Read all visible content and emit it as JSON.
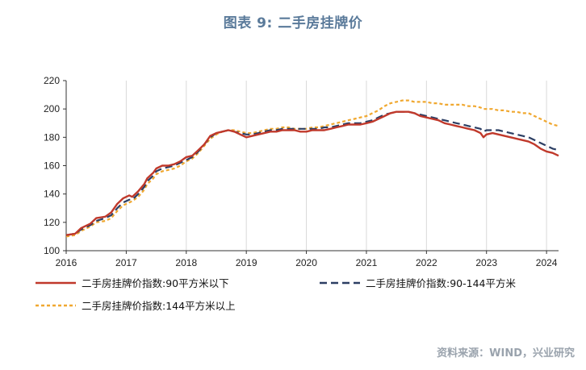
{
  "title": "图表 9:  二手房挂牌价",
  "source": "资料来源：WIND，兴业研究",
  "chart_data": {
    "type": "line",
    "xlim": [
      2016.0,
      2024.2
    ],
    "ylim": [
      100,
      220
    ],
    "x_ticks": [
      2016,
      2017,
      2018,
      2019,
      2020,
      2021,
      2022,
      2023,
      2024
    ],
    "y_ticks": [
      100,
      120,
      140,
      160,
      180,
      200,
      220
    ],
    "grid": "vertical",
    "legend_position": "bottom",
    "series": [
      {
        "name": "二手房挂牌价指数:90平方米以下",
        "color": "#c0392b",
        "style": "solid",
        "points": [
          [
            2016.0,
            111
          ],
          [
            2016.15,
            112
          ],
          [
            2016.25,
            116
          ],
          [
            2016.4,
            119
          ],
          [
            2016.5,
            123
          ],
          [
            2016.65,
            124
          ],
          [
            2016.75,
            127
          ],
          [
            2016.85,
            133
          ],
          [
            2016.95,
            137
          ],
          [
            2017.05,
            139
          ],
          [
            2017.1,
            138
          ],
          [
            2017.2,
            142
          ],
          [
            2017.3,
            147
          ],
          [
            2017.35,
            151
          ],
          [
            2017.45,
            155
          ],
          [
            2017.5,
            158
          ],
          [
            2017.6,
            160
          ],
          [
            2017.7,
            160
          ],
          [
            2017.8,
            161
          ],
          [
            2017.9,
            163
          ],
          [
            2018.0,
            166
          ],
          [
            2018.1,
            167
          ],
          [
            2018.2,
            171
          ],
          [
            2018.3,
            175
          ],
          [
            2018.4,
            181
          ],
          [
            2018.5,
            183
          ],
          [
            2018.6,
            184
          ],
          [
            2018.7,
            185
          ],
          [
            2018.8,
            184
          ],
          [
            2018.9,
            182
          ],
          [
            2019.0,
            180
          ],
          [
            2019.1,
            181
          ],
          [
            2019.2,
            182
          ],
          [
            2019.3,
            183
          ],
          [
            2019.4,
            184
          ],
          [
            2019.5,
            184
          ],
          [
            2019.6,
            185
          ],
          [
            2019.7,
            185
          ],
          [
            2019.8,
            185
          ],
          [
            2019.9,
            184
          ],
          [
            2020.0,
            184
          ],
          [
            2020.1,
            185
          ],
          [
            2020.2,
            185
          ],
          [
            2020.3,
            185
          ],
          [
            2020.4,
            186
          ],
          [
            2020.5,
            187
          ],
          [
            2020.6,
            188
          ],
          [
            2020.7,
            189
          ],
          [
            2020.8,
            189
          ],
          [
            2020.9,
            189
          ],
          [
            2021.0,
            190
          ],
          [
            2021.1,
            191
          ],
          [
            2021.2,
            193
          ],
          [
            2021.3,
            195
          ],
          [
            2021.4,
            197
          ],
          [
            2021.5,
            198
          ],
          [
            2021.6,
            198
          ],
          [
            2021.7,
            198
          ],
          [
            2021.8,
            197
          ],
          [
            2021.9,
            195
          ],
          [
            2022.0,
            194
          ],
          [
            2022.1,
            193
          ],
          [
            2022.2,
            192
          ],
          [
            2022.3,
            190
          ],
          [
            2022.4,
            189
          ],
          [
            2022.5,
            188
          ],
          [
            2022.6,
            187
          ],
          [
            2022.7,
            186
          ],
          [
            2022.8,
            185
          ],
          [
            2022.9,
            183
          ],
          [
            2022.95,
            180
          ],
          [
            2023.0,
            182
          ],
          [
            2023.1,
            183
          ],
          [
            2023.2,
            182
          ],
          [
            2023.3,
            181
          ],
          [
            2023.4,
            180
          ],
          [
            2023.5,
            179
          ],
          [
            2023.6,
            178
          ],
          [
            2023.7,
            177
          ],
          [
            2023.8,
            175
          ],
          [
            2023.9,
            172
          ],
          [
            2024.0,
            170
          ],
          [
            2024.1,
            169
          ],
          [
            2024.2,
            167
          ]
        ]
      },
      {
        "name": "二手房挂牌价指数:90-144平方米",
        "color": "#2c3e63",
        "style": "dashed",
        "points": [
          [
            2016.0,
            111
          ],
          [
            2016.15,
            112
          ],
          [
            2016.25,
            115
          ],
          [
            2016.4,
            118
          ],
          [
            2016.5,
            121
          ],
          [
            2016.65,
            123
          ],
          [
            2016.75,
            125
          ],
          [
            2016.85,
            130
          ],
          [
            2016.95,
            134
          ],
          [
            2017.05,
            136
          ],
          [
            2017.1,
            136
          ],
          [
            2017.2,
            140
          ],
          [
            2017.3,
            145
          ],
          [
            2017.35,
            149
          ],
          [
            2017.45,
            153
          ],
          [
            2017.5,
            156
          ],
          [
            2017.6,
            158
          ],
          [
            2017.7,
            159
          ],
          [
            2017.8,
            160
          ],
          [
            2017.9,
            162
          ],
          [
            2018.0,
            164
          ],
          [
            2018.1,
            166
          ],
          [
            2018.2,
            170
          ],
          [
            2018.3,
            175
          ],
          [
            2018.4,
            180
          ],
          [
            2018.5,
            183
          ],
          [
            2018.6,
            184
          ],
          [
            2018.7,
            185
          ],
          [
            2018.8,
            184
          ],
          [
            2018.9,
            183
          ],
          [
            2019.0,
            182
          ],
          [
            2019.1,
            182
          ],
          [
            2019.2,
            183
          ],
          [
            2019.3,
            184
          ],
          [
            2019.4,
            185
          ],
          [
            2019.5,
            185
          ],
          [
            2019.6,
            186
          ],
          [
            2019.7,
            186
          ],
          [
            2019.8,
            186
          ],
          [
            2019.9,
            186
          ],
          [
            2020.0,
            186
          ],
          [
            2020.1,
            186
          ],
          [
            2020.2,
            186
          ],
          [
            2020.3,
            187
          ],
          [
            2020.4,
            187
          ],
          [
            2020.5,
            188
          ],
          [
            2020.6,
            189
          ],
          [
            2020.7,
            190
          ],
          [
            2020.8,
            190
          ],
          [
            2020.9,
            190
          ],
          [
            2021.0,
            191
          ],
          [
            2021.1,
            192
          ],
          [
            2021.2,
            194
          ],
          [
            2021.3,
            196
          ],
          [
            2021.4,
            197
          ],
          [
            2021.5,
            198
          ],
          [
            2021.6,
            198
          ],
          [
            2021.7,
            198
          ],
          [
            2021.8,
            197
          ],
          [
            2021.9,
            196
          ],
          [
            2022.0,
            195
          ],
          [
            2022.1,
            194
          ],
          [
            2022.2,
            193
          ],
          [
            2022.3,
            192
          ],
          [
            2022.4,
            191
          ],
          [
            2022.5,
            190
          ],
          [
            2022.6,
            189
          ],
          [
            2022.7,
            188
          ],
          [
            2022.8,
            187
          ],
          [
            2022.9,
            186
          ],
          [
            2022.95,
            184
          ],
          [
            2023.0,
            185
          ],
          [
            2023.1,
            185
          ],
          [
            2023.2,
            185
          ],
          [
            2023.3,
            184
          ],
          [
            2023.4,
            183
          ],
          [
            2023.5,
            182
          ],
          [
            2023.6,
            181
          ],
          [
            2023.7,
            180
          ],
          [
            2023.8,
            178
          ],
          [
            2023.9,
            176
          ],
          [
            2024.0,
            174
          ],
          [
            2024.1,
            172
          ],
          [
            2024.2,
            171
          ]
        ]
      },
      {
        "name": "二手房挂牌价指数:144平方米以上",
        "color": "#f0a830",
        "style": "dotted",
        "points": [
          [
            2016.0,
            110
          ],
          [
            2016.15,
            111
          ],
          [
            2016.25,
            114
          ],
          [
            2016.4,
            117
          ],
          [
            2016.5,
            120
          ],
          [
            2016.65,
            121
          ],
          [
            2016.75,
            123
          ],
          [
            2016.85,
            128
          ],
          [
            2016.95,
            132
          ],
          [
            2017.05,
            134
          ],
          [
            2017.1,
            135
          ],
          [
            2017.2,
            138
          ],
          [
            2017.3,
            143
          ],
          [
            2017.35,
            147
          ],
          [
            2017.45,
            151
          ],
          [
            2017.5,
            154
          ],
          [
            2017.6,
            156
          ],
          [
            2017.7,
            157
          ],
          [
            2017.8,
            158
          ],
          [
            2017.9,
            160
          ],
          [
            2018.0,
            163
          ],
          [
            2018.1,
            165
          ],
          [
            2018.2,
            169
          ],
          [
            2018.3,
            174
          ],
          [
            2018.4,
            179
          ],
          [
            2018.5,
            182
          ],
          [
            2018.6,
            184
          ],
          [
            2018.7,
            185
          ],
          [
            2018.8,
            185
          ],
          [
            2018.9,
            184
          ],
          [
            2019.0,
            183
          ],
          [
            2019.1,
            183
          ],
          [
            2019.2,
            184
          ],
          [
            2019.3,
            185
          ],
          [
            2019.4,
            186
          ],
          [
            2019.5,
            186
          ],
          [
            2019.6,
            187
          ],
          [
            2019.7,
            187
          ],
          [
            2019.8,
            186
          ],
          [
            2019.9,
            186
          ],
          [
            2020.0,
            186
          ],
          [
            2020.1,
            187
          ],
          [
            2020.2,
            187
          ],
          [
            2020.3,
            188
          ],
          [
            2020.4,
            189
          ],
          [
            2020.5,
            190
          ],
          [
            2020.6,
            191
          ],
          [
            2020.7,
            192
          ],
          [
            2020.8,
            193
          ],
          [
            2020.9,
            194
          ],
          [
            2021.0,
            195
          ],
          [
            2021.1,
            197
          ],
          [
            2021.2,
            199
          ],
          [
            2021.3,
            202
          ],
          [
            2021.4,
            204
          ],
          [
            2021.5,
            205
          ],
          [
            2021.6,
            206
          ],
          [
            2021.7,
            206
          ],
          [
            2021.8,
            205
          ],
          [
            2021.9,
            205
          ],
          [
            2022.0,
            205
          ],
          [
            2022.1,
            204
          ],
          [
            2022.2,
            204
          ],
          [
            2022.3,
            203
          ],
          [
            2022.4,
            203
          ],
          [
            2022.5,
            203
          ],
          [
            2022.6,
            203
          ],
          [
            2022.7,
            202
          ],
          [
            2022.8,
            202
          ],
          [
            2022.9,
            201
          ],
          [
            2022.95,
            200
          ],
          [
            2023.0,
            200
          ],
          [
            2023.1,
            200
          ],
          [
            2023.2,
            199
          ],
          [
            2023.3,
            199
          ],
          [
            2023.4,
            198
          ],
          [
            2023.5,
            198
          ],
          [
            2023.6,
            197
          ],
          [
            2023.7,
            197
          ],
          [
            2023.8,
            195
          ],
          [
            2023.9,
            193
          ],
          [
            2024.0,
            191
          ],
          [
            2024.1,
            189
          ],
          [
            2024.2,
            188
          ]
        ]
      }
    ]
  }
}
